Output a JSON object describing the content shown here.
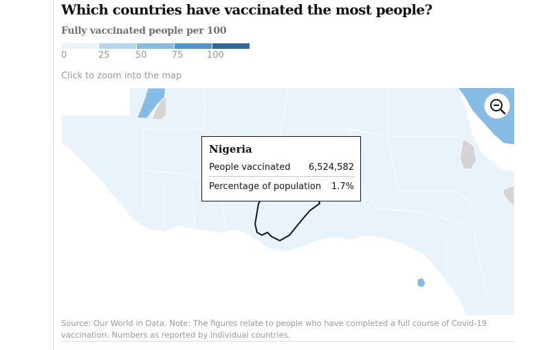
{
  "title": "Which countries have vaccinated the most people?",
  "subtitle": "Fully vaccinated people per 100",
  "legend": {
    "colors": [
      "#e8f3fb",
      "#b3d5ee",
      "#85bce5",
      "#4d97d3",
      "#2c6a9d"
    ],
    "labels": [
      "0",
      "25",
      "50",
      "75",
      "100"
    ]
  },
  "hint": "Click to zoom into the map",
  "zoom": {
    "icon": "zoom-out-icon"
  },
  "tooltip": {
    "country": "Nigeria",
    "rows": [
      {
        "label": "People vaccinated",
        "value": "6,524,582"
      },
      {
        "label": "Percentage of population",
        "value": "1.7%"
      }
    ]
  },
  "map": {
    "colors": {
      "land": "#e8f3fb",
      "ocean": "#ffffff",
      "border": "#ffffff",
      "no_data": "#d4d4d4",
      "high": "#85bce5",
      "mid": "#b3d5ee",
      "highlight_outline": "#121212"
    }
  },
  "source": "Source: Our World in Data. Note: The figures relate to people who have completed a full course of Covid-19 vaccination. Numbers as reported by individual countries."
}
